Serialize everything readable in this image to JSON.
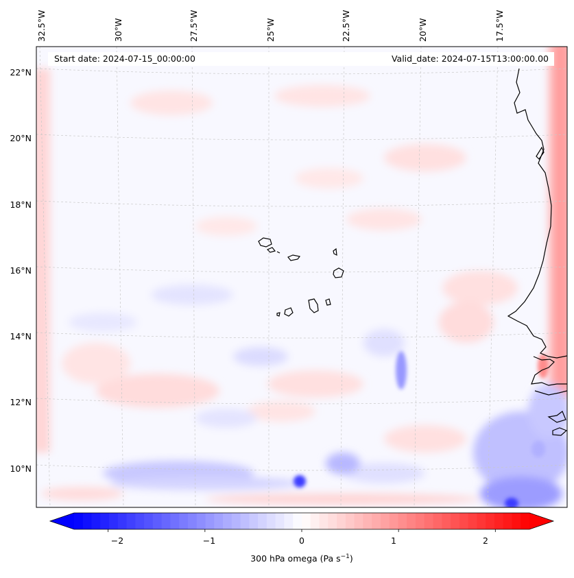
{
  "map": {
    "start_date": "Start date: 2024-07-15_00:00:00",
    "valid_date": "Valid_date: 2024-07-15T13:00:00.00",
    "longitude_labels": [
      "32.5°W",
      "30°W",
      "27.5°W",
      "25°W",
      "22.5°W",
      "20°W",
      "17.5°W"
    ],
    "latitude_labels": [
      "22°N",
      "20°N",
      "18°N",
      "16°N",
      "14°N",
      "12°N",
      "10°N"
    ],
    "coastline_color": "#000000",
    "gridline_color": "#c8c8c8"
  },
  "colorbar": {
    "label": "300 hPa omega (Pa s",
    "label_superscript": "−1",
    "label_close": ")",
    "ticks": [
      "−2",
      "−1",
      "0",
      "1",
      "2"
    ],
    "range": [
      -2.6,
      2.6
    ],
    "colors": {
      "negative": "#0000ff",
      "zero": "#ffffff",
      "positive": "#ff0000"
    }
  }
}
